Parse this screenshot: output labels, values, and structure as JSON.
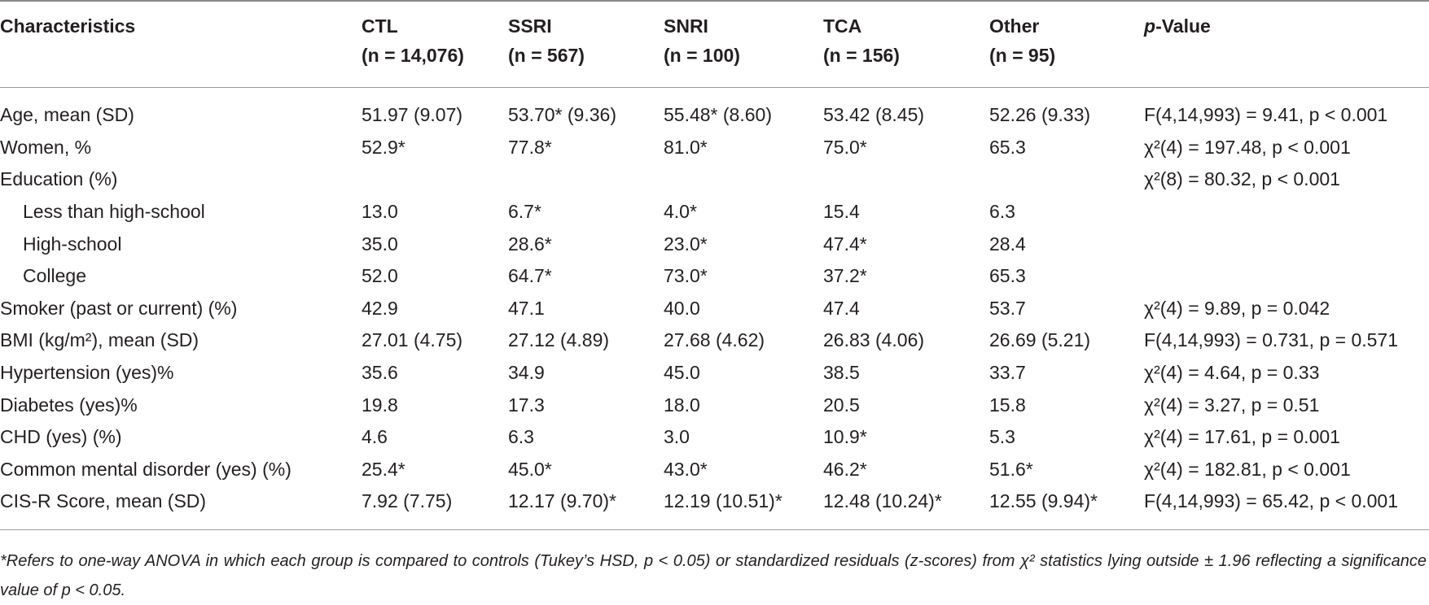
{
  "headers": {
    "characteristics": "Characteristics",
    "ctl": {
      "name": "CTL",
      "n": "(n = 14,076)"
    },
    "ssri": {
      "name": "SSRI",
      "n": "(n = 567)"
    },
    "snri": {
      "name": "SNRI",
      "n": "(n = 100)"
    },
    "tca": {
      "name": "TCA",
      "n": "(n = 156)"
    },
    "other": {
      "name": "Other",
      "n": "(n = 95)"
    },
    "pvalue_italic": "p",
    "pvalue_rest": "-Value"
  },
  "rows": [
    {
      "label": "Age, mean (SD)",
      "ctl": "51.97 (9.07)",
      "ssri": "53.70* (9.36)",
      "snri": "55.48* (8.60)",
      "tca": "53.42 (8.45)",
      "other": "52.26 (9.33)",
      "p": "F(4,14,993) = 9.41,  p < 0.001"
    },
    {
      "label": "Women, %",
      "ctl": "52.9*",
      "ssri": "77.8*",
      "snri": "81.0*",
      "tca": "75.0*",
      "other": "65.3",
      "p": "χ²(4) = 197.48,  p < 0.001"
    },
    {
      "label": "Education (%)",
      "ctl": "",
      "ssri": "",
      "snri": "",
      "tca": "",
      "other": "",
      "p": "χ²(8) = 80.32,  p < 0.001"
    },
    {
      "label": "Less than high-school",
      "ctl": "13.0",
      "ssri": "6.7*",
      "snri": "4.0*",
      "tca": "15.4",
      "other": "6.3",
      "p": ""
    },
    {
      "label": "High-school",
      "ctl": "35.0",
      "ssri": "28.6*",
      "snri": "23.0*",
      "tca": "47.4*",
      "other": "28.4",
      "p": ""
    },
    {
      "label": "College",
      "ctl": "52.0",
      "ssri": "64.7*",
      "snri": "73.0*",
      "tca": "37.2*",
      "other": "65.3",
      "p": ""
    },
    {
      "label": "Smoker (past or current) (%)",
      "ctl": "42.9",
      "ssri": "47.1",
      "snri": "40.0",
      "tca": "47.4",
      "other": "53.7",
      "p": "χ²(4) = 9.89,  p = 0.042"
    },
    {
      "label": "BMI (kg/m²), mean (SD)",
      "ctl": "27.01 (4.75)",
      "ssri": "27.12 (4.89)",
      "snri": "27.68 (4.62)",
      "tca": "26.83 (4.06)",
      "other": "26.69 (5.21)",
      "p": "F(4,14,993) = 0.731,  p = 0.571"
    },
    {
      "label": "Hypertension (yes)%",
      "ctl": "35.6",
      "ssri": "34.9",
      "snri": "45.0",
      "tca": "38.5",
      "other": "33.7",
      "p": "χ²(4) = 4.64,  p = 0.33"
    },
    {
      "label": "Diabetes (yes)%",
      "ctl": "19.8",
      "ssri": "17.3",
      "snri": "18.0",
      "tca": "20.5",
      "other": "15.8",
      "p": "χ²(4) = 3.27,  p = 0.51"
    },
    {
      "label": "CHD (yes) (%)",
      "ctl": "4.6",
      "ssri": "6.3",
      "snri": "3.0",
      "tca": "10.9*",
      "other": "5.3",
      "p": "χ²(4) = 17.61,  p = 0.001"
    },
    {
      "label": "Common mental disorder (yes) (%)",
      "ctl": "25.4*",
      "ssri": "45.0*",
      "snri": "43.0*",
      "tca": "46.2*",
      "other": "51.6*",
      "p": "χ²(4) = 182.81,  p < 0.001"
    },
    {
      "label": "CIS-R Score, mean (SD)",
      "ctl": "7.92 (7.75)",
      "ssri": "12.17 (9.70)*",
      "snri": "12.19 (10.51)*",
      "tca": "12.48 (10.24)*",
      "other": "12.55 (9.94)*",
      "p": "F(4,14,993) = 65.42,  p < 0.001"
    }
  ],
  "footnote": "*Refers to one-way ANOVA in which each group is compared to controls (Tukey’s HSD, p < 0.05) or standardized residuals (z-scores) from χ² statistics lying outside ± 1.96 reflecting a significance value of p < 0.05."
}
